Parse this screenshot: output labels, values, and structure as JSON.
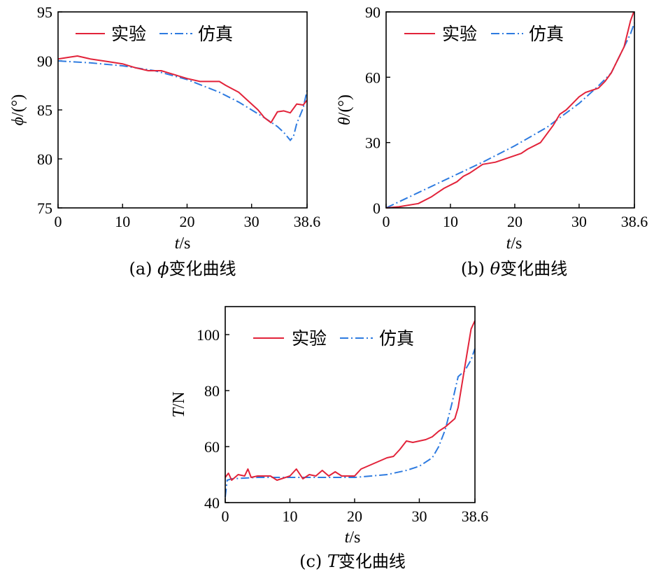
{
  "legend": {
    "experiment": "实验",
    "simulation": "仿真"
  },
  "colors": {
    "experiment": "#e2233a",
    "simulation": "#2e7be0"
  },
  "chart_data": [
    {
      "id": "a",
      "type": "line",
      "ylabel_symbol": "ϕ",
      "ylabel_unit": "/(°)",
      "xlabel_symbol": "t",
      "xlabel_unit": "/s",
      "caption_prefix": "(a) ",
      "caption_symbol": "ϕ",
      "caption_suffix": "变化曲线",
      "xlim": [
        0,
        38.6
      ],
      "ylim": [
        75,
        95
      ],
      "xticks": [
        0,
        10,
        20,
        30,
        38.6
      ],
      "yticks": [
        75,
        80,
        85,
        90,
        95
      ],
      "series": [
        {
          "name": "实验",
          "x": [
            0,
            2,
            3,
            5,
            7,
            8,
            10,
            12,
            14,
            16,
            17,
            18,
            20,
            22,
            24,
            25,
            26,
            28,
            30,
            31,
            32,
            33,
            34,
            35,
            36,
            37,
            38,
            38.6
          ],
          "y": [
            90.2,
            90.4,
            90.5,
            90.2,
            90.0,
            89.9,
            89.7,
            89.3,
            89.0,
            89.0,
            88.8,
            88.6,
            88.2,
            87.9,
            87.9,
            87.9,
            87.5,
            86.8,
            85.6,
            85.0,
            84.2,
            83.7,
            84.8,
            84.9,
            84.7,
            85.6,
            85.5,
            86.0
          ]
        },
        {
          "name": "仿真",
          "x": [
            0,
            5,
            10,
            15,
            20,
            25,
            28,
            30,
            32,
            34,
            35,
            36,
            36.5,
            37,
            38,
            38.6
          ],
          "y": [
            90.0,
            89.8,
            89.5,
            89.0,
            88.1,
            86.8,
            85.8,
            85.0,
            84.2,
            83.3,
            82.7,
            81.9,
            82.3,
            83.6,
            85.2,
            87.0
          ]
        }
      ]
    },
    {
      "id": "b",
      "type": "line",
      "ylabel_symbol": "θ",
      "ylabel_unit": "/(°)",
      "xlabel_symbol": "t",
      "xlabel_unit": "/s",
      "caption_prefix": "(b) ",
      "caption_symbol": "θ",
      "caption_suffix": "变化曲线",
      "xlim": [
        0,
        38.6
      ],
      "ylim": [
        0,
        90
      ],
      "xticks": [
        0,
        10,
        20,
        30,
        38.6
      ],
      "yticks": [
        0,
        30,
        60,
        90
      ],
      "series": [
        {
          "name": "实验",
          "x": [
            0,
            2,
            4,
            5,
            7,
            8,
            9,
            11,
            12,
            13,
            15,
            17,
            18,
            20,
            21,
            22,
            24,
            26,
            27,
            28,
            29,
            30,
            31,
            32,
            33,
            34,
            35,
            36,
            37,
            38,
            38.5
          ],
          "y": [
            0,
            0.5,
            1.5,
            2,
            5,
            7,
            9,
            12,
            14.5,
            16,
            20,
            21,
            22,
            24,
            25,
            27,
            30,
            38,
            43,
            45,
            48,
            51,
            53,
            54,
            55,
            58,
            62,
            68,
            74,
            86,
            90
          ]
        },
        {
          "name": "仿真",
          "x": [
            0,
            5,
            10,
            15,
            20,
            25,
            30,
            33,
            35,
            36,
            37,
            38,
            38.6
          ],
          "y": [
            0,
            7,
            14,
            21,
            28.5,
            37,
            48,
            56,
            62,
            68,
            74,
            80,
            85
          ]
        }
      ]
    },
    {
      "id": "c",
      "type": "line",
      "ylabel_symbol": "T",
      "ylabel_unit": "/N",
      "xlabel_symbol": "t",
      "xlabel_unit": "/s",
      "caption_prefix": "(c) ",
      "caption_symbol": "T",
      "caption_suffix": "变化曲线",
      "xlim": [
        0,
        38.6
      ],
      "ylim": [
        40,
        110
      ],
      "xticks": [
        0,
        10,
        20,
        30,
        38.6
      ],
      "yticks": [
        40,
        60,
        80,
        100
      ],
      "series": [
        {
          "name": "实验",
          "x": [
            0,
            0.5,
            1,
            2,
            3,
            3.5,
            4,
            5,
            7,
            8,
            10,
            11,
            12,
            13,
            14,
            15,
            16,
            17,
            18,
            19,
            20,
            21,
            22,
            24,
            25,
            26,
            27,
            28,
            29,
            30,
            31,
            32,
            33,
            34,
            35,
            35.5,
            36,
            37,
            38,
            38.6
          ],
          "y": [
            49,
            50.5,
            48,
            50,
            49.5,
            52,
            49,
            49.5,
            49.5,
            48,
            49.5,
            52,
            48.5,
            50,
            49.5,
            51.5,
            49.5,
            51,
            49.5,
            49.5,
            49.5,
            52,
            53,
            55,
            56,
            56.5,
            59,
            62,
            61.5,
            62,
            62.5,
            63.5,
            65.5,
            67,
            69,
            70,
            74,
            88,
            102,
            105
          ]
        },
        {
          "name": "仿真",
          "x": [
            0,
            0.3,
            1,
            5,
            10,
            15,
            20,
            25,
            28,
            30,
            32,
            33,
            34,
            35,
            36,
            36.5,
            37,
            38,
            38.6
          ],
          "y": [
            42,
            48,
            48.5,
            49,
            49,
            49,
            49,
            50,
            51.5,
            53,
            56,
            60,
            66,
            75,
            85,
            86,
            87,
            91,
            95
          ]
        }
      ]
    }
  ]
}
